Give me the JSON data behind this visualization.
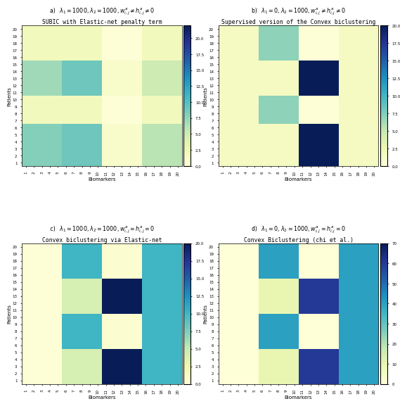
{
  "title_a": "a) $\\lambda_1 = 1000, \\lambda_2 = 1000, w^a_{i,j} \\neq h^a_{i,j} \\neq 0$\nSUBIC with Elastic-net penalty term",
  "title_b": "b) $\\lambda_1 = 0, \\lambda_2 = 1000, w^a_{i,j} \\neq h^a_{i,j} \\neq 0$\nSupervised version of the Convex biclustering",
  "title_c": "c) $\\lambda_1 = 1000, \\lambda_2 = 1000, w^a_{i,j} = h^a_{i,j} = 0$\nConvex biclustering via Elastic-net",
  "title_d": "d) $\\lambda_1 = 0, \\lambda_2 = 1000, w^a_{i,j} = h^a_{i,j} = 0$\nConvex Biclustering (chi et al.)",
  "xlabel": "Biomarkers",
  "ylabel": "Patients",
  "colormap": "YlGnBu",
  "panels": [
    {
      "nrows": 20,
      "ncols": 20,
      "block_rows": [
        6,
        4,
        5,
        5
      ],
      "block_cols": [
        5,
        5,
        5,
        5
      ],
      "values": [
        [
          8,
          9,
          1,
          6
        ],
        [
          2,
          2,
          0.2,
          2
        ],
        [
          7,
          9,
          1,
          5
        ],
        [
          2,
          2,
          0.2,
          2
        ]
      ],
      "vmax": 22,
      "cbar_ticks": [
        0,
        5,
        10,
        15,
        20
      ]
    },
    {
      "nrows": 20,
      "ncols": 20,
      "block_rows": [
        6,
        4,
        5,
        5
      ],
      "block_cols": [
        5,
        5,
        5,
        5
      ],
      "values": [
        [
          1.5,
          1.5,
          20,
          1.5
        ],
        [
          1.5,
          7,
          0.2,
          1.5
        ],
        [
          1.5,
          1.5,
          20,
          1.5
        ],
        [
          1.5,
          7,
          0.2,
          1.5
        ]
      ],
      "vmax": 20,
      "cbar_ticks": [
        0,
        5,
        10,
        15,
        20
      ]
    },
    {
      "nrows": 20,
      "ncols": 20,
      "block_rows": [
        5,
        5,
        5,
        5
      ],
      "block_cols": [
        5,
        5,
        5,
        5
      ],
      "values": [
        [
          0.2,
          4,
          20,
          10
        ],
        [
          0.2,
          10,
          0.5,
          10
        ],
        [
          0.2,
          4,
          20,
          10
        ],
        [
          0.2,
          10,
          0.5,
          10
        ]
      ],
      "vmax": 20,
      "cbar_ticks": [
        0,
        5,
        10,
        15,
        20
      ]
    },
    {
      "nrows": 20,
      "ncols": 20,
      "block_rows": [
        5,
        5,
        5,
        5
      ],
      "block_cols": [
        5,
        5,
        5,
        5
      ],
      "values": [
        [
          0.5,
          10,
          60,
          40
        ],
        [
          0.5,
          40,
          0.5,
          40
        ],
        [
          0.5,
          10,
          60,
          40
        ],
        [
          0.5,
          40,
          0.5,
          40
        ]
      ],
      "vmax": 70,
      "cbar_ticks": [
        0,
        10,
        20,
        30,
        40,
        50,
        60,
        70
      ]
    }
  ]
}
